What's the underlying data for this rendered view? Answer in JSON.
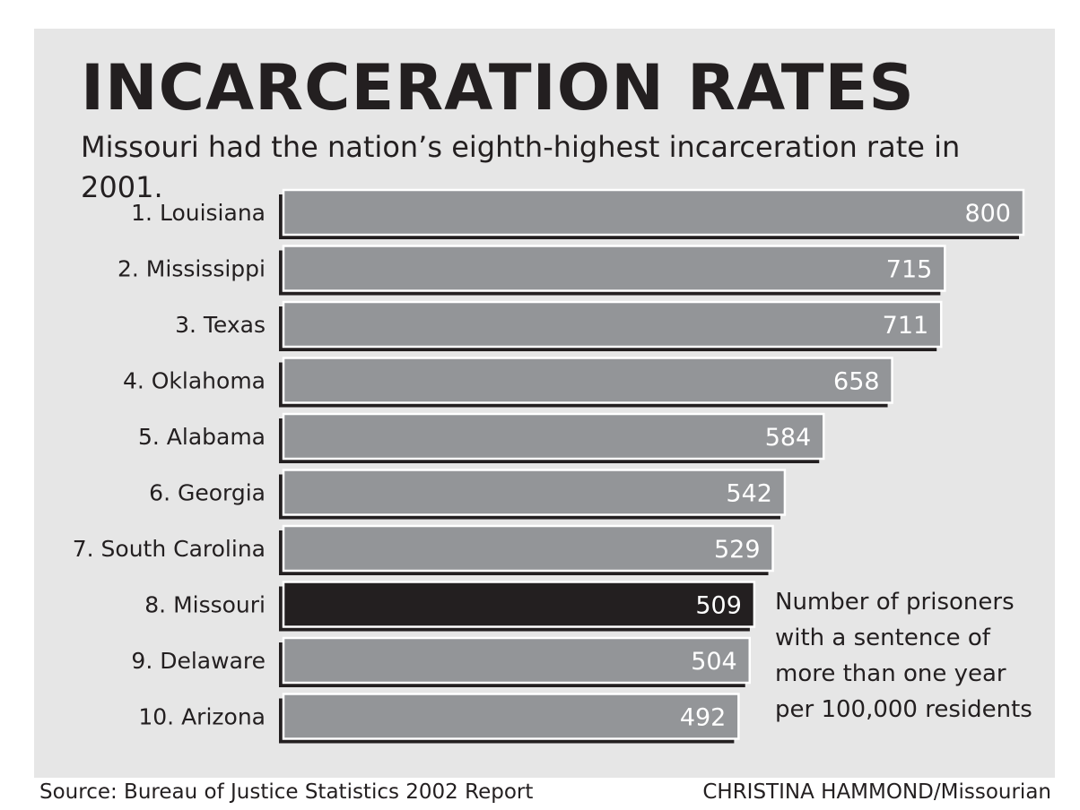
{
  "chart_data": {
    "type": "bar",
    "orientation": "horizontal",
    "title": "INCARCERATION RATES",
    "subtitle": "Missouri had the nation’s eighth-highest incarceration rate in 2001.",
    "categories": [
      "1. Louisiana",
      "2. Mississippi",
      "3. Texas",
      "4. Oklahoma",
      "5. Alabama",
      "6. Georgia",
      "7. South Carolina",
      "8. Missouri",
      "9. Delaware",
      "10. Arizona"
    ],
    "values": [
      800,
      715,
      711,
      658,
      584,
      542,
      529,
      509,
      504,
      492
    ],
    "highlight_index": 7,
    "xlim": [
      0,
      800
    ],
    "grid": false,
    "note": [
      "Number of prisoners",
      "with a sentence of",
      "more than one year",
      "per 100,000 residents"
    ],
    "colors": {
      "bar": "#939598",
      "highlight": "#231f20",
      "shadow": "#231f20",
      "outline": "#ffffff",
      "value_text": "#ffffff",
      "panel": "#e6e6e6"
    }
  },
  "footer": {
    "source": "Source: Bureau of Justice Statistics 2002 Report",
    "credit": "CHRISTINA HAMMOND/Missourian"
  }
}
